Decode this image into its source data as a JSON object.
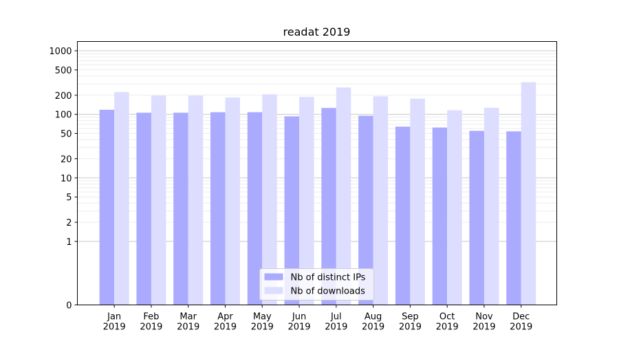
{
  "chart_data": {
    "type": "bar",
    "title": "readat 2019",
    "xlabel": "",
    "ylabel": "",
    "yscale": "symlog",
    "ylim": [
      0,
      1400
    ],
    "yticks": [
      0,
      1,
      2,
      5,
      10,
      20,
      50,
      100,
      200,
      500,
      1000
    ],
    "grid": true,
    "legend_position": "bottom-center",
    "categories": [
      "Jan\n2019",
      "Feb\n2019",
      "Mar\n2019",
      "Apr\n2019",
      "May\n2019",
      "Jun\n2019",
      "Jul\n2019",
      "Aug\n2019",
      "Sep\n2019",
      "Oct\n2019",
      "Nov\n2019",
      "Dec\n2019"
    ],
    "series": [
      {
        "name": "Nb of distinct IPs",
        "color": "#aaaaff",
        "values": [
          118,
          106,
          106,
          108,
          108,
          93,
          126,
          95,
          64,
          62,
          55,
          54
        ]
      },
      {
        "name": "Nb of downloads",
        "color": "#ddddff",
        "values": [
          224,
          197,
          197,
          184,
          206,
          188,
          265,
          192,
          177,
          116,
          127,
          320
        ]
      }
    ]
  }
}
